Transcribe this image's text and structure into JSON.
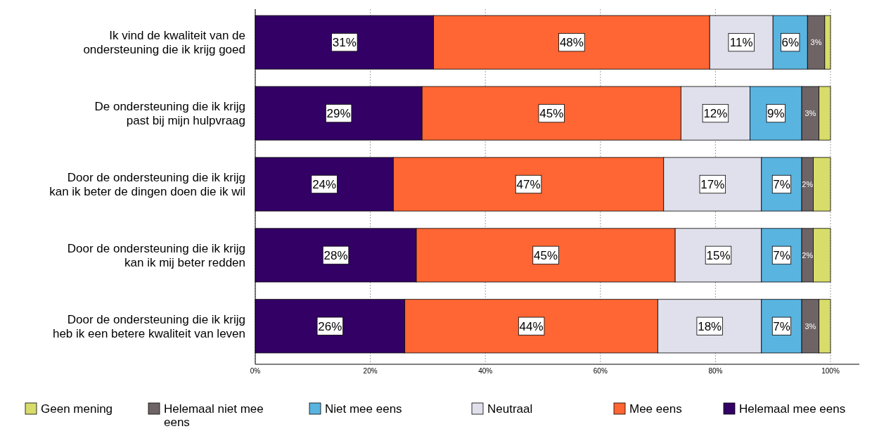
{
  "chart_data": {
    "type": "bar",
    "orientation": "horizontal",
    "stacked": true,
    "categories": [
      "Ik vind de kwaliteit van de\nondersteuning die ik krijg goed",
      "De ondersteuning die ik krijg\npast bij mijn hulpvraag",
      "Door de ondersteuning die ik krijg\nkan ik beter de dingen doen die ik wil",
      "Door de ondersteuning die ik krijg\nkan ik mij beter redden",
      "Door de ondersteuning die ik krijg\nheb ik een betere kwaliteit van leven"
    ],
    "series": [
      {
        "name": "Helemaal mee eens",
        "color": "#330066",
        "values": [
          31,
          29,
          24,
          28,
          26
        ],
        "value_labels": [
          "31%",
          "29%",
          "24%",
          "28%",
          "26%"
        ]
      },
      {
        "name": "Mee eens",
        "color": "#ff6633",
        "values": [
          48,
          45,
          47,
          45,
          44
        ],
        "value_labels": [
          "48%",
          "45%",
          "47%",
          "45%",
          "44%"
        ]
      },
      {
        "name": "Neutraal",
        "color": "#e0e0ec",
        "values": [
          11,
          12,
          17,
          15,
          18
        ],
        "value_labels": [
          "11%",
          "12%",
          "17%",
          "15%",
          "18%"
        ]
      },
      {
        "name": "Niet mee eens",
        "color": "#5ab4e0",
        "values": [
          6,
          9,
          7,
          7,
          7
        ],
        "value_labels": [
          "6%",
          "9%",
          "7%",
          "7%",
          "7%"
        ]
      },
      {
        "name": "Helemaal niet mee eens",
        "color": "#6e6466",
        "values": [
          3,
          3,
          2,
          2,
          3
        ],
        "value_labels": [
          "3%",
          "3%",
          "2%",
          "2%",
          "3%"
        ]
      },
      {
        "name": "Geen mening",
        "color": "#d8dc6a",
        "values": [
          1,
          2,
          3,
          3,
          2
        ],
        "value_labels": [
          null,
          null,
          null,
          null,
          null
        ]
      }
    ],
    "xlim": [
      0,
      100
    ],
    "xticks": [
      {
        "value": 0,
        "label": "0%"
      },
      {
        "value": 20,
        "label": "20%"
      },
      {
        "value": 40,
        "label": "40%"
      },
      {
        "value": 60,
        "label": "60%"
      },
      {
        "value": 80,
        "label": "80%"
      },
      {
        "value": 100,
        "label": "100%"
      }
    ],
    "grid": "x",
    "legend": "bottom"
  }
}
